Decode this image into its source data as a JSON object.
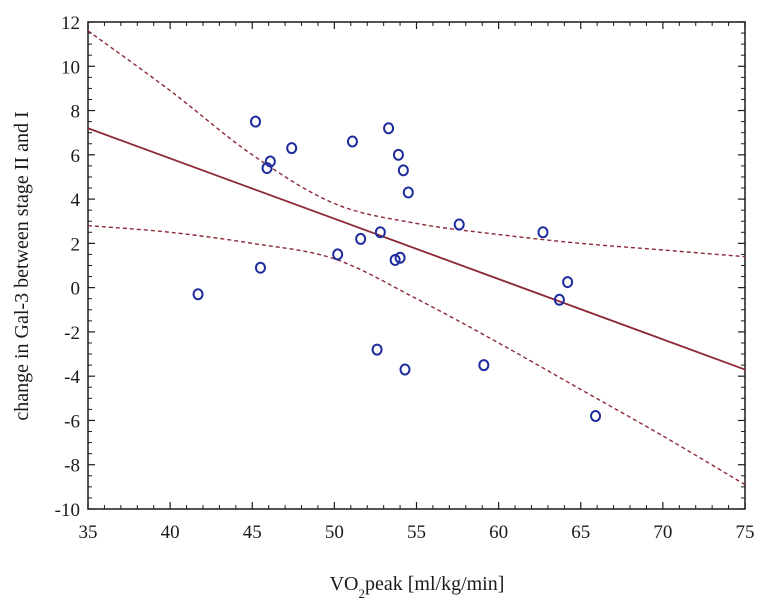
{
  "chart_data": {
    "type": "scatter",
    "title": "",
    "xlabel_main": "VO",
    "xlabel_sub": "2",
    "xlabel_rest": "peak [ml/kg/min]",
    "ylabel": "change in Gal-3 between stage II and I",
    "xlim": [
      35,
      75
    ],
    "ylim": [
      -10,
      12
    ],
    "x_ticks": [
      "35",
      "40",
      "45",
      "50",
      "55",
      "60",
      "65",
      "70",
      "75"
    ],
    "y_ticks": [
      "12",
      "10",
      "8",
      "6",
      "4",
      "2",
      "0",
      "-2",
      "-4",
      "-6",
      "-8",
      "-10"
    ],
    "grid": false,
    "points": [
      {
        "x": 41.7,
        "y": -0.3
      },
      {
        "x": 45.2,
        "y": 7.5
      },
      {
        "x": 45.5,
        "y": 0.9
      },
      {
        "x": 45.9,
        "y": 5.4
      },
      {
        "x": 46.1,
        "y": 5.7
      },
      {
        "x": 47.4,
        "y": 6.3
      },
      {
        "x": 50.2,
        "y": 1.5
      },
      {
        "x": 51.1,
        "y": 6.6
      },
      {
        "x": 51.6,
        "y": 2.2
      },
      {
        "x": 52.6,
        "y": -2.8
      },
      {
        "x": 52.8,
        "y": 2.5
      },
      {
        "x": 53.3,
        "y": 7.2
      },
      {
        "x": 53.7,
        "y": 1.25
      },
      {
        "x": 53.9,
        "y": 6.0
      },
      {
        "x": 54.0,
        "y": 1.35
      },
      {
        "x": 54.2,
        "y": 5.3
      },
      {
        "x": 54.3,
        "y": -3.7
      },
      {
        "x": 54.5,
        "y": 4.3
      },
      {
        "x": 57.6,
        "y": 2.85
      },
      {
        "x": 59.1,
        "y": -3.5
      },
      {
        "x": 62.7,
        "y": 2.5
      },
      {
        "x": 63.7,
        "y": -0.55
      },
      {
        "x": 64.2,
        "y": 0.25
      },
      {
        "x": 65.9,
        "y": -5.8
      }
    ],
    "regression_line": [
      [
        35,
        7.2
      ],
      [
        75,
        -3.7
      ]
    ],
    "confidence_upper": [
      [
        35,
        11.6
      ],
      [
        40,
        8.9
      ],
      [
        45,
        6.0
      ],
      [
        50,
        3.8
      ],
      [
        55,
        2.9
      ],
      [
        60,
        2.4
      ],
      [
        65,
        2.0
      ],
      [
        70,
        1.7
      ],
      [
        75,
        1.4
      ]
    ],
    "confidence_lower": [
      [
        35,
        2.8
      ],
      [
        40,
        2.5
      ],
      [
        45,
        2.0
      ],
      [
        50,
        1.3
      ],
      [
        55,
        -0.5
      ],
      [
        60,
        -2.5
      ],
      [
        65,
        -4.6
      ],
      [
        70,
        -6.7
      ],
      [
        75,
        -8.9
      ]
    ],
    "colors": {
      "points": "#1f2c9e",
      "regression": "#8b2a35",
      "confidence": "#8b2a35",
      "frame": "#1a1a1a"
    }
  }
}
